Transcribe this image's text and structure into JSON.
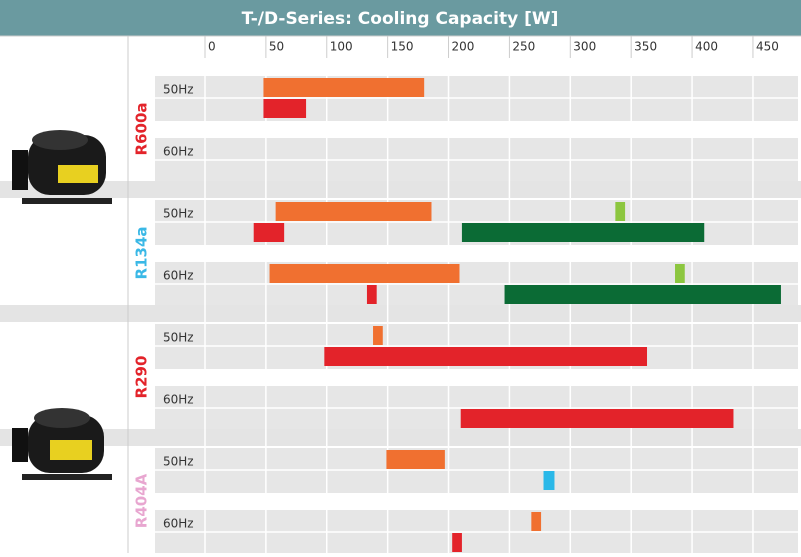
{
  "chart_data": {
    "type": "range-bar",
    "title": "T-/D-Series: Cooling Capacity [W]",
    "xlim": [
      0,
      487
    ],
    "xticks": [
      0,
      50,
      100,
      150,
      200,
      250,
      300,
      350,
      400,
      450
    ],
    "grid": true,
    "groups": [
      {
        "name": "R600a",
        "color": "#e3232a",
        "rows": [
          {
            "label": "50Hz",
            "lanes": [
              [
                {
                  "color": "#f07030",
                  "values": [
                    48,
                    180
                  ]
                }
              ],
              [
                {
                  "color": "#e3232a",
                  "values": [
                    48,
                    83
                  ]
                }
              ]
            ]
          },
          {
            "label": "60Hz",
            "lanes": [
              [],
              []
            ]
          }
        ]
      },
      {
        "name": "R134a",
        "color": "#3ab8e6",
        "rows": [
          {
            "label": "50Hz",
            "lanes": [
              [
                {
                  "color": "#f07030",
                  "values": [
                    58,
                    186
                  ]
                },
                {
                  "color": "#8cc63f",
                  "values": [
                    337,
                    345
                  ]
                }
              ],
              [
                {
                  "color": "#e3232a",
                  "values": [
                    40,
                    65
                  ]
                },
                {
                  "color": "#0b6b35",
                  "values": [
                    211,
                    410
                  ]
                }
              ]
            ]
          },
          {
            "label": "60Hz",
            "lanes": [
              [
                {
                  "color": "#f07030",
                  "values": [
                    53,
                    209
                  ]
                },
                {
                  "color": "#8cc63f",
                  "values": [
                    386,
                    394
                  ]
                }
              ],
              [
                {
                  "color": "#e3232a",
                  "values": [
                    133,
                    141
                  ]
                },
                {
                  "color": "#0b6b35",
                  "values": [
                    246,
                    473
                  ]
                }
              ]
            ]
          }
        ]
      },
      {
        "name": "R290",
        "color": "#e3232a",
        "rows": [
          {
            "label": "50Hz",
            "lanes": [
              [
                {
                  "color": "#f07030",
                  "values": [
                    138,
                    146
                  ]
                }
              ],
              [
                {
                  "color": "#e3232a",
                  "values": [
                    98,
                    363
                  ]
                }
              ]
            ]
          },
          {
            "label": "60Hz",
            "lanes": [
              [],
              [
                {
                  "color": "#e3232a",
                  "values": [
                    210,
                    434
                  ]
                }
              ]
            ]
          }
        ]
      },
      {
        "name": "R404A",
        "color": "#e8a6d0",
        "rows": [
          {
            "label": "50Hz",
            "lanes": [
              [
                {
                  "color": "#f07030",
                  "values": [
                    149,
                    197
                  ]
                }
              ],
              [
                {
                  "color": "#2ab8e8",
                  "values": [
                    278,
                    287
                  ]
                }
              ]
            ]
          },
          {
            "label": "60Hz",
            "lanes": [
              [
                {
                  "color": "#f07030",
                  "values": [
                    268,
                    276
                  ]
                }
              ],
              [
                {
                  "color": "#e3232a",
                  "values": [
                    203,
                    211
                  ]
                }
              ]
            ]
          }
        ]
      }
    ]
  }
}
